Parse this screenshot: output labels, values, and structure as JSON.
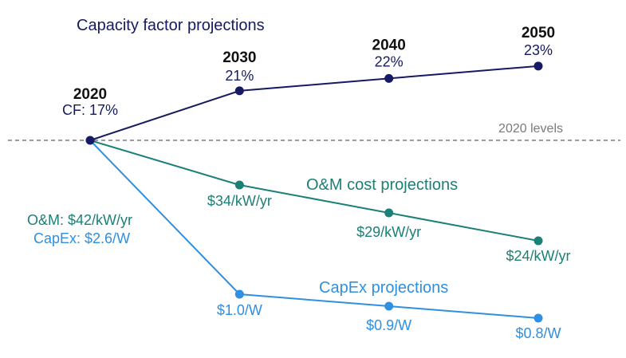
{
  "chart_data": {
    "type": "line",
    "x": [
      2020,
      2030,
      2040,
      2050
    ],
    "reference_line": {
      "label": "2020 levels",
      "style": "dashed",
      "color": "#7a7a7a"
    },
    "series": [
      {
        "name": "Capacity factor projections",
        "color": "#151a63",
        "values": [
          17,
          21,
          22,
          23
        ],
        "point_labels": [
          "CF: 17%",
          "21%",
          "22%",
          "23%"
        ],
        "year_labels": [
          "2020",
          "2030",
          "2040",
          "2050"
        ]
      },
      {
        "name": "O&M cost projections",
        "color": "#1b8076",
        "values": [
          42,
          34,
          29,
          24
        ],
        "point_labels": [
          "O&M: $42/kW/yr",
          "$34/kW/yr",
          "$29/kW/yr",
          "$24/kW/yr"
        ]
      },
      {
        "name": "CapEx projections",
        "color": "#2f8fe0",
        "values": [
          2.6,
          1.0,
          0.9,
          0.8
        ],
        "point_labels": [
          "CapEx: $2.6/W",
          "$1.0/W",
          "$0.9/W",
          "$0.8/W"
        ]
      }
    ],
    "grid": false,
    "legend": "none"
  }
}
